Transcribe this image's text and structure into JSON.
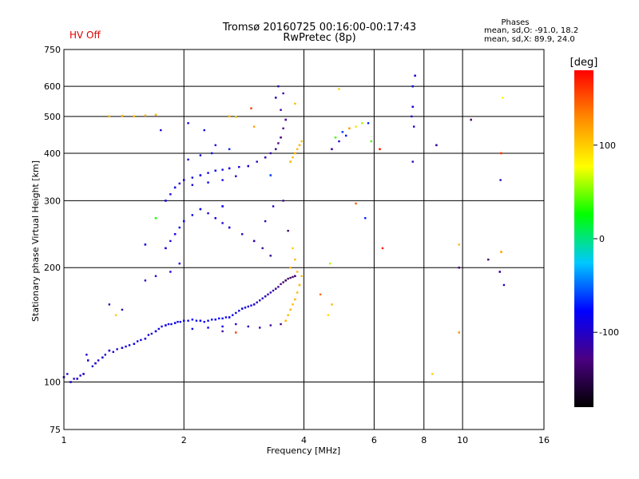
{
  "header": {
    "hv_status": "HV Off",
    "title_line1": "Tromsø 20160725 00:16:00-00:17:43",
    "title_line2": "RwPretec (8p)"
  },
  "phase_stats": {
    "title": "Phases",
    "line_o": "mean, sd,O: -91.0, 18.2",
    "line_x": "mean, sd,X: 89.9, 24.0"
  },
  "colors": {
    "hv_status": "#e00000",
    "grid": "#000000",
    "colormap": [
      "#000000",
      "#4b0082",
      "#0000ff",
      "#00c8ff",
      "#00ff00",
      "#ffff00",
      "#ff8c00",
      "#ff0000"
    ]
  },
  "chart_data": {
    "type": "scatter",
    "title": "Tromsø 20160725 00:16:00-00:17:43",
    "subtitle": "RwPretec (8p)",
    "xlabel": "Frequency [MHz]",
    "ylabel": "Stationary phase Virtual Height [km]",
    "x_scale": "log",
    "y_scale": "log",
    "xlim": [
      1,
      16
    ],
    "ylim": [
      75,
      750
    ],
    "x_ticks": [
      "1",
      "2",
      "4",
      "6",
      "8",
      "10",
      "16"
    ],
    "x_tick_values": [
      1,
      2,
      4,
      6,
      8,
      10,
      16
    ],
    "y_ticks": [
      "75",
      "100",
      "200",
      "300",
      "400",
      "500",
      "600",
      "750"
    ],
    "y_tick_values": [
      75,
      100,
      200,
      300,
      400,
      500,
      600,
      750
    ],
    "grid": true,
    "colorbar": {
      "label": "[deg]",
      "range": [
        -180,
        180
      ],
      "ticks": [
        "100",
        "0",
        "-100"
      ],
      "tick_values": [
        100,
        0,
        -100
      ]
    },
    "series": [
      {
        "points": [
          [
            1.0,
            103,
            -100
          ],
          [
            1.04,
            100,
            -100
          ],
          [
            1.08,
            102,
            -100
          ],
          [
            1.12,
            105,
            -100
          ],
          [
            1.15,
            114,
            -100
          ],
          [
            1.2,
            112,
            -100
          ],
          [
            1.25,
            116,
            -95
          ],
          [
            1.3,
            121,
            -95
          ],
          [
            1.4,
            123,
            -95
          ],
          [
            1.5,
            126,
            -90
          ],
          [
            1.6,
            130,
            -90
          ],
          [
            1.7,
            136,
            -90
          ],
          [
            1.8,
            141,
            -90
          ],
          [
            1.9,
            143,
            -85
          ],
          [
            2.0,
            145,
            -85
          ],
          [
            2.2,
            145,
            -80
          ],
          [
            2.4,
            146,
            -80
          ],
          [
            2.6,
            148,
            -85
          ],
          [
            2.8,
            156,
            -90
          ],
          [
            3.0,
            160,
            -100
          ],
          [
            3.2,
            168,
            -110
          ],
          [
            3.4,
            176,
            -120
          ],
          [
            3.6,
            185,
            -140
          ],
          [
            3.8,
            190,
            -140
          ],
          [
            1.8,
            225,
            -90
          ],
          [
            1.9,
            245,
            -90
          ],
          [
            2.0,
            265,
            -85
          ],
          [
            2.2,
            285,
            -85
          ],
          [
            2.4,
            270,
            -95
          ],
          [
            2.6,
            255,
            -95
          ],
          [
            3.0,
            235,
            -110
          ],
          [
            3.3,
            215,
            -120
          ],
          [
            1.8,
            300,
            -90
          ],
          [
            1.9,
            325,
            -90
          ],
          [
            2.0,
            340,
            -90
          ],
          [
            2.2,
            350,
            -85
          ],
          [
            2.4,
            360,
            -85
          ],
          [
            2.6,
            365,
            -90
          ],
          [
            2.9,
            370,
            -95
          ],
          [
            3.2,
            390,
            -110
          ],
          [
            3.4,
            410,
            -120
          ],
          [
            3.5,
            440,
            -130
          ],
          [
            3.6,
            490,
            -120
          ],
          [
            3.4,
            560,
            -110
          ],
          [
            3.6,
            145,
            110
          ],
          [
            3.7,
            155,
            110
          ],
          [
            3.8,
            165,
            110
          ],
          [
            3.9,
            180,
            110
          ],
          [
            3.7,
            380,
            110
          ],
          [
            3.8,
            400,
            110
          ],
          [
            3.9,
            420,
            110
          ],
          [
            1.3,
            500,
            110
          ],
          [
            1.5,
            500,
            110
          ],
          [
            1.7,
            505,
            110
          ],
          [
            2.6,
            500,
            110
          ],
          [
            4.7,
            410,
            -120
          ],
          [
            4.8,
            440,
            40
          ],
          [
            5.0,
            455,
            -60
          ],
          [
            5.2,
            465,
            120
          ],
          [
            5.6,
            480,
            60
          ],
          [
            6.2,
            410,
            170
          ],
          [
            7.5,
            600,
            -90
          ],
          [
            7.6,
            640,
            -100
          ],
          [
            7.5,
            530,
            -90
          ],
          [
            8.6,
            420,
            -120
          ],
          [
            10.5,
            490,
            -130
          ],
          [
            12.5,
            400,
            160
          ],
          [
            12.5,
            220,
            120
          ],
          [
            9.8,
            200,
            -130
          ],
          [
            12.4,
            195,
            -120
          ],
          [
            1.7,
            270,
            30
          ],
          [
            1.6,
            230,
            -90
          ],
          [
            3.3,
            350,
            -60
          ],
          [
            2.5,
            290,
            -80
          ]
        ]
      }
    ]
  },
  "plot_points": [
    [
      1.0,
      103,
      -100
    ],
    [
      1.02,
      105,
      -100
    ],
    [
      1.04,
      100,
      -100
    ],
    [
      1.06,
      102,
      -100
    ],
    [
      1.08,
      102,
      -100
    ],
    [
      1.1,
      104,
      -100
    ],
    [
      1.12,
      105,
      -100
    ],
    [
      1.14,
      118,
      -95
    ],
    [
      1.15,
      114,
      -100
    ],
    [
      1.18,
      110,
      -95
    ],
    [
      1.2,
      112,
      -100
    ],
    [
      1.22,
      114,
      -95
    ],
    [
      1.25,
      116,
      -95
    ],
    [
      1.27,
      118,
      -95
    ],
    [
      1.3,
      121,
      -95
    ],
    [
      1.33,
      120,
      -95
    ],
    [
      1.36,
      122,
      -95
    ],
    [
      1.4,
      123,
      -95
    ],
    [
      1.43,
      124,
      -90
    ],
    [
      1.46,
      125,
      -90
    ],
    [
      1.5,
      126,
      -90
    ],
    [
      1.53,
      128,
      -90
    ],
    [
      1.56,
      129,
      -90
    ],
    [
      1.6,
      130,
      -90
    ],
    [
      1.63,
      133,
      -90
    ],
    [
      1.66,
      134,
      -90
    ],
    [
      1.7,
      136,
      -90
    ],
    [
      1.73,
      138,
      -90
    ],
    [
      1.76,
      140,
      -90
    ],
    [
      1.8,
      141,
      -90
    ],
    [
      1.83,
      142,
      -85
    ],
    [
      1.86,
      142,
      -85
    ],
    [
      1.9,
      143,
      -85
    ],
    [
      1.93,
      144,
      -85
    ],
    [
      1.96,
      144,
      -85
    ],
    [
      2.0,
      145,
      -85
    ],
    [
      2.05,
      145,
      -80
    ],
    [
      2.1,
      146,
      -80
    ],
    [
      2.15,
      145,
      -80
    ],
    [
      2.2,
      145,
      -80
    ],
    [
      2.25,
      144,
      -80
    ],
    [
      2.3,
      145,
      -80
    ],
    [
      2.35,
      146,
      -80
    ],
    [
      2.4,
      146,
      -80
    ],
    [
      2.45,
      147,
      -80
    ],
    [
      2.5,
      147,
      -80
    ],
    [
      2.55,
      148,
      -85
    ],
    [
      2.6,
      148,
      -85
    ],
    [
      2.65,
      150,
      -85
    ],
    [
      2.7,
      152,
      -85
    ],
    [
      2.75,
      154,
      -90
    ],
    [
      2.8,
      156,
      -90
    ],
    [
      2.85,
      157,
      -90
    ],
    [
      2.9,
      158,
      -95
    ],
    [
      2.95,
      159,
      -95
    ],
    [
      3.0,
      160,
      -100
    ],
    [
      3.05,
      162,
      -100
    ],
    [
      3.1,
      164,
      -105
    ],
    [
      3.15,
      166,
      -105
    ],
    [
      3.2,
      168,
      -110
    ],
    [
      3.25,
      170,
      -110
    ],
    [
      3.3,
      172,
      -115
    ],
    [
      3.35,
      174,
      -115
    ],
    [
      3.4,
      176,
      -120
    ],
    [
      3.45,
      178,
      -125
    ],
    [
      3.5,
      181,
      -130
    ],
    [
      3.55,
      183,
      -135
    ],
    [
      3.6,
      185,
      -140
    ],
    [
      3.65,
      187,
      -140
    ],
    [
      3.7,
      188,
      -140
    ],
    [
      3.75,
      189,
      -140
    ],
    [
      3.8,
      190,
      -140
    ],
    [
      2.1,
      138,
      -85
    ],
    [
      2.3,
      139,
      -85
    ],
    [
      2.5,
      140,
      -85
    ],
    [
      2.7,
      142,
      -90
    ],
    [
      2.9,
      140,
      -100
    ],
    [
      3.1,
      139,
      -110
    ],
    [
      3.3,
      141,
      -120
    ],
    [
      3.5,
      142,
      -130
    ],
    [
      1.8,
      225,
      -90
    ],
    [
      1.85,
      235,
      -90
    ],
    [
      1.9,
      245,
      -90
    ],
    [
      1.95,
      255,
      -85
    ],
    [
      2.0,
      265,
      -85
    ],
    [
      2.1,
      275,
      -85
    ],
    [
      2.2,
      285,
      -85
    ],
    [
      2.3,
      278,
      -90
    ],
    [
      2.4,
      270,
      -95
    ],
    [
      2.5,
      262,
      -95
    ],
    [
      2.6,
      255,
      -95
    ],
    [
      2.8,
      245,
      -105
    ],
    [
      3.0,
      235,
      -110
    ],
    [
      3.15,
      225,
      -115
    ],
    [
      3.3,
      215,
      -120
    ],
    [
      1.8,
      300,
      -90
    ],
    [
      1.85,
      312,
      -90
    ],
    [
      1.9,
      325,
      -90
    ],
    [
      1.95,
      333,
      -90
    ],
    [
      2.0,
      340,
      -90
    ],
    [
      2.1,
      345,
      -85
    ],
    [
      2.2,
      350,
      -85
    ],
    [
      2.3,
      355,
      -85
    ],
    [
      2.4,
      360,
      -85
    ],
    [
      2.5,
      362,
      -90
    ],
    [
      2.6,
      365,
      -90
    ],
    [
      2.75,
      368,
      -95
    ],
    [
      2.9,
      370,
      -95
    ],
    [
      3.05,
      380,
      -105
    ],
    [
      3.2,
      390,
      -110
    ],
    [
      3.3,
      400,
      -115
    ],
    [
      3.4,
      410,
      -120
    ],
    [
      3.45,
      425,
      -125
    ],
    [
      3.5,
      440,
      -130
    ],
    [
      3.55,
      465,
      -125
    ],
    [
      3.6,
      490,
      -120
    ],
    [
      3.5,
      520,
      -115
    ],
    [
      3.4,
      560,
      -110
    ],
    [
      3.45,
      600,
      -110
    ],
    [
      2.1,
      330,
      -90
    ],
    [
      2.3,
      335,
      -90
    ],
    [
      2.5,
      340,
      -90
    ],
    [
      2.7,
      348,
      -95
    ],
    [
      3.6,
      145,
      110
    ],
    [
      3.65,
      150,
      110
    ],
    [
      3.7,
      155,
      110
    ],
    [
      3.75,
      160,
      110
    ],
    [
      3.8,
      165,
      110
    ],
    [
      3.85,
      172,
      110
    ],
    [
      3.9,
      180,
      110
    ],
    [
      3.95,
      190,
      110
    ],
    [
      3.7,
      380,
      110
    ],
    [
      3.75,
      390,
      110
    ],
    [
      3.8,
      400,
      110
    ],
    [
      3.85,
      410,
      110
    ],
    [
      3.9,
      420,
      110
    ],
    [
      3.95,
      430,
      105
    ],
    [
      1.3,
      500,
      110
    ],
    [
      1.4,
      502,
      110
    ],
    [
      1.5,
      500,
      110
    ],
    [
      1.6,
      503,
      110
    ],
    [
      1.7,
      505,
      110
    ],
    [
      2.6,
      500,
      110
    ],
    [
      2.7,
      498,
      100
    ],
    [
      4.7,
      410,
      -120
    ],
    [
      4.8,
      440,
      40
    ],
    [
      4.9,
      430,
      -100
    ],
    [
      5.0,
      455,
      -60
    ],
    [
      5.1,
      445,
      -80
    ],
    [
      5.2,
      465,
      120
    ],
    [
      5.4,
      470,
      90
    ],
    [
      5.6,
      480,
      60
    ],
    [
      6.2,
      410,
      170
    ],
    [
      7.5,
      600,
      -90
    ],
    [
      7.6,
      640,
      -100
    ],
    [
      7.5,
      530,
      -90
    ],
    [
      7.45,
      500,
      -100
    ],
    [
      7.55,
      470,
      -95
    ],
    [
      7.5,
      380,
      -110
    ],
    [
      8.6,
      420,
      -120
    ],
    [
      10.5,
      490,
      -130
    ],
    [
      12.5,
      400,
      160
    ],
    [
      12.5,
      220,
      120
    ],
    [
      9.8,
      200,
      -130
    ],
    [
      12.4,
      195,
      -120
    ],
    [
      12.45,
      340,
      -110
    ],
    [
      11.6,
      210,
      -140
    ],
    [
      1.7,
      270,
      30
    ],
    [
      1.6,
      230,
      -90
    ],
    [
      3.3,
      350,
      -60
    ],
    [
      2.5,
      290,
      -80
    ],
    [
      4.6,
      150,
      90
    ],
    [
      4.7,
      160,
      110
    ],
    [
      4.4,
      170,
      140
    ],
    [
      4.65,
      205,
      60
    ],
    [
      5.7,
      270,
      -70
    ],
    [
      5.4,
      295,
      150
    ],
    [
      6.3,
      225,
      170
    ],
    [
      1.4,
      155,
      -110
    ],
    [
      1.35,
      150,
      100
    ],
    [
      1.3,
      160,
      -110
    ],
    [
      2.7,
      135,
      160
    ],
    [
      2.5,
      136,
      -120
    ],
    [
      1.6,
      185,
      -100
    ],
    [
      1.7,
      190,
      -95
    ],
    [
      1.85,
      195,
      -90
    ],
    [
      1.95,
      205,
      -90
    ],
    [
      3.2,
      265,
      -110
    ],
    [
      3.35,
      290,
      -100
    ],
    [
      3.55,
      300,
      -120
    ],
    [
      3.65,
      250,
      -140
    ],
    [
      3.7,
      200,
      105
    ],
    [
      3.8,
      210,
      110
    ],
    [
      3.75,
      225,
      100
    ],
    [
      3.85,
      195,
      110
    ],
    [
      2.35,
      400,
      -80
    ],
    [
      2.2,
      395,
      -90
    ],
    [
      2.05,
      385,
      -90
    ],
    [
      2.4,
      420,
      -90
    ],
    [
      2.6,
      410,
      -70
    ],
    [
      2.25,
      460,
      -90
    ],
    [
      2.05,
      480,
      -90
    ],
    [
      1.75,
      460,
      -100
    ],
    [
      3.0,
      470,
      120
    ],
    [
      2.95,
      525,
      160
    ],
    [
      3.55,
      575,
      -120
    ],
    [
      3.8,
      540,
      110
    ],
    [
      4.9,
      590,
      100
    ],
    [
      8.4,
      105,
      100
    ],
    [
      9.8,
      230,
      110
    ],
    [
      9.8,
      135,
      130
    ],
    [
      12.7,
      180,
      -100
    ],
    [
      12.6,
      560,
      80
    ],
    [
      5.8,
      480,
      -70
    ],
    [
      5.9,
      430,
      40
    ]
  ]
}
